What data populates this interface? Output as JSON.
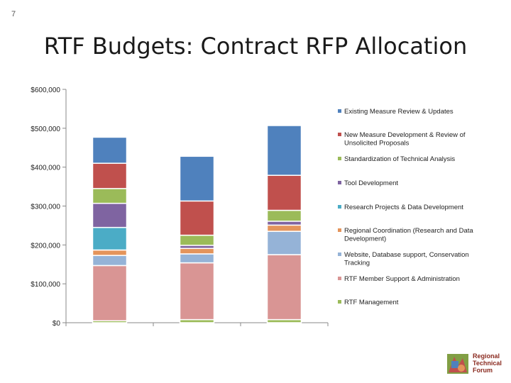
{
  "slide": {
    "number": "7",
    "title": "RTF Budgets: Contract RFP Allocation"
  },
  "logo": {
    "line1": "Regional",
    "line2": "Technical",
    "line3": "Forum"
  },
  "chart_data": {
    "type": "bar",
    "stacked": true,
    "title": "",
    "xlabel": "",
    "ylabel": "",
    "ylim": [
      0,
      600000
    ],
    "y_ticks": [
      {
        "value": 0,
        "label": "$0"
      },
      {
        "value": 100000,
        "label": "$100,000"
      },
      {
        "value": 200000,
        "label": "$200,000"
      },
      {
        "value": 300000,
        "label": "$300,000"
      },
      {
        "value": 400000,
        "label": "$400,000"
      },
      {
        "value": 500000,
        "label": "$500,000"
      },
      {
        "value": 600000,
        "label": "$600,000"
      }
    ],
    "categories": [
      "",
      "",
      ""
    ],
    "legend_position": "right",
    "series": [
      {
        "name": "RTF Management",
        "color": "#9bbb59",
        "values": [
          5000,
          8000,
          8000
        ]
      },
      {
        "name": "RTF Member Support & Administration",
        "color": "#d99594",
        "values": [
          142000,
          146000,
          167000
        ]
      },
      {
        "name": "Website, Database support, Conservation Tracking",
        "color": "#95b3d7",
        "values": [
          26000,
          23000,
          60000
        ]
      },
      {
        "name": "Regional Coordination (Research and Data Development)",
        "color": "#e4945b",
        "values": [
          14000,
          14000,
          16000
        ]
      },
      {
        "name": "Research Projects & Data Development",
        "color": "#4bacc6",
        "values": [
          58000,
          0,
          0
        ]
      },
      {
        "name": "Tool Development",
        "color": "#7f64a1",
        "values": [
          62000,
          8000,
          10000
        ]
      },
      {
        "name": "Standardization of Technical Analysis",
        "color": "#9bbb59",
        "values": [
          38000,
          26000,
          28000
        ]
      },
      {
        "name": "New Measure Development & Review of Unsolicited Proposals",
        "color": "#c0504d",
        "values": [
          65000,
          88000,
          90000
        ]
      },
      {
        "name": "Existing Measure Review & Updates",
        "color": "#4f81bd",
        "values": [
          67000,
          115000,
          128000
        ]
      }
    ]
  }
}
